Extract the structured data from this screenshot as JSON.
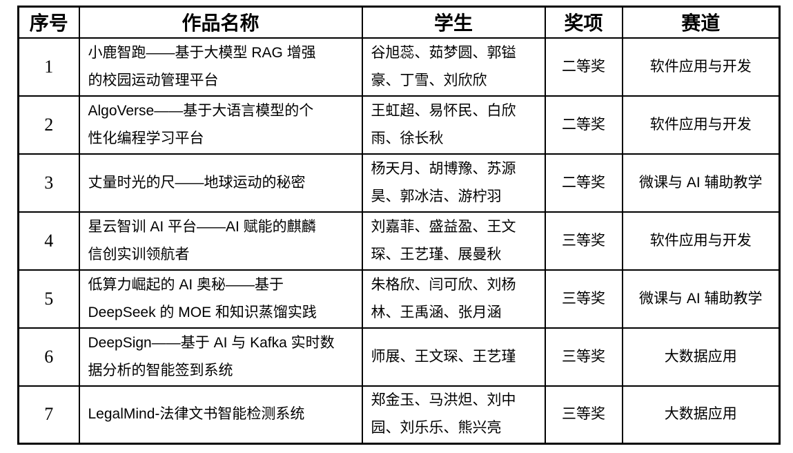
{
  "table": {
    "headers": [
      "序号",
      "作品名称",
      "学生",
      "奖项",
      "赛道"
    ],
    "rows": [
      {
        "no": "1",
        "title": "小鹿智跑——基于大模型 RAG 增强\n的校园运动管理平台",
        "students": "谷旭蕊、茹梦圆、郭镒\n豪、丁雪、刘欣欣",
        "award": "二等奖",
        "track": "软件应用与开发"
      },
      {
        "no": "2",
        "title": "AlgoVerse——基于大语言模型的个\n性化编程学习平台",
        "students": "王虹超、易怀民、白欣\n雨、徐长秋",
        "award": "二等奖",
        "track": "软件应用与开发"
      },
      {
        "no": "3",
        "title": "丈量时光的尺——地球运动的秘密",
        "students": "杨天月、胡博豫、苏源\n昊、郭冰洁、游柠羽",
        "award": "二等奖",
        "track": "微课与 AI 辅助教学"
      },
      {
        "no": "4",
        "title": "星云智训 AI 平台——AI 赋能的麒麟\n信创实训领航者",
        "students": "刘嘉菲、盛益盈、王文\n琛、王艺瑾、展曼秋",
        "award": "三等奖",
        "track": "软件应用与开发"
      },
      {
        "no": "5",
        "title": "低算力崛起的 AI 奥秘——基于\nDeepSeek 的 MOE 和知识蒸馏实践",
        "students": "朱格欣、闫可欣、刘杨\n林、王禹涵、张月涵",
        "award": "三等奖",
        "track": "微课与 AI 辅助教学"
      },
      {
        "no": "6",
        "title": "DeepSign——基于 AI 与 Kafka 实时数\n据分析的智能签到系统",
        "students": "师展、王文琛、王艺瑾",
        "award": "三等奖",
        "track": "大数据应用"
      },
      {
        "no": "7",
        "title": "LegalMind-法律文书智能检测系统",
        "students": "郑金玉、马洪炟、刘中\n园、刘乐乐、熊兴亮",
        "award": "三等奖",
        "track": "大数据应用"
      }
    ]
  }
}
